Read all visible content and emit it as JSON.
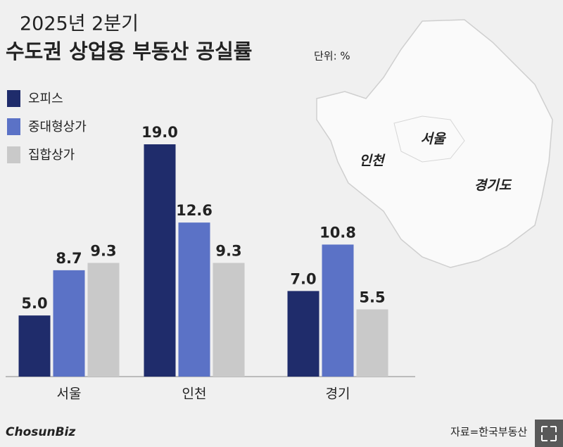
{
  "chart_data": {
    "type": "bar",
    "title": "2025년 2분기",
    "subtitle": "수도권 상업용 부동산 공실률",
    "unit": "단위: %",
    "categories": [
      "서울",
      "인천",
      "경기"
    ],
    "series": [
      {
        "name": "오피스",
        "color": "#1f2c6b",
        "values": [
          5.0,
          19.0,
          7.0
        ],
        "value_labels": [
          "5.0",
          "19.0",
          "7.0"
        ]
      },
      {
        "name": "중대형상가",
        "color": "#5b72c6",
        "values": [
          8.7,
          12.6,
          10.8
        ],
        "value_labels": [
          "8.7",
          "12.6",
          "10.8"
        ]
      },
      {
        "name": "집합상가",
        "color": "#c9c9c9",
        "values": [
          9.3,
          9.3,
          5.5
        ],
        "value_labels": [
          "9.3",
          "9.3",
          "5.5"
        ]
      }
    ],
    "map_labels": [
      "서울",
      "인천",
      "경기도"
    ],
    "source": "자료=한국부동산",
    "logo": "ChosunBiz"
  }
}
